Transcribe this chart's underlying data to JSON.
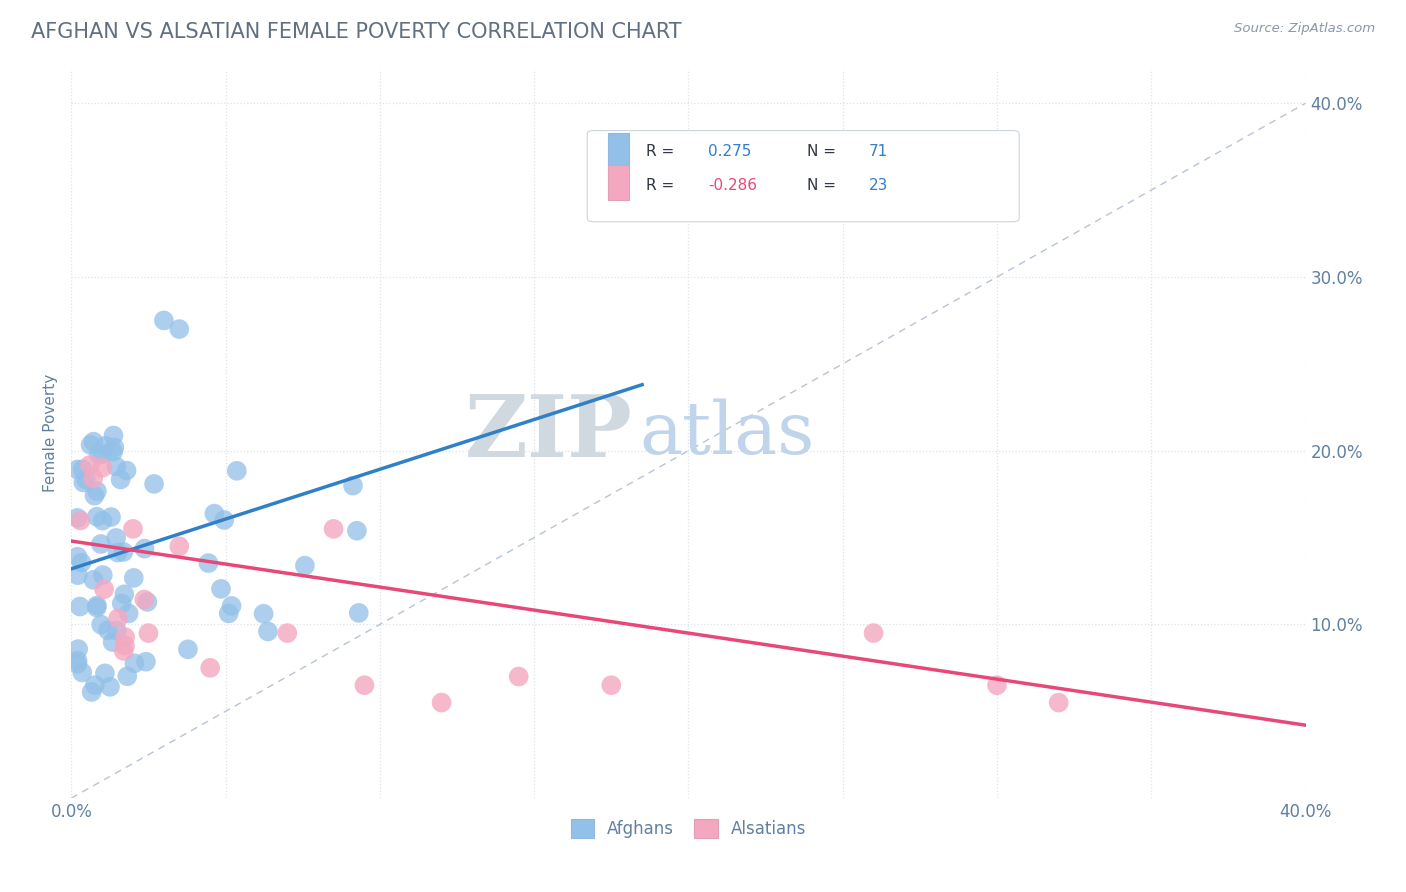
{
  "title": "AFGHAN VS ALSATIAN FEMALE POVERTY CORRELATION CHART",
  "source": "Source: ZipAtlas.com",
  "ylabel": "Female Poverty",
  "afghan_color": "#92c0e8",
  "alsatian_color": "#f4a8c0",
  "afghan_line_color": "#3080c8",
  "alsatian_line_color": "#e84878",
  "ref_line_color": "#b8c4d4",
  "legend_R1": "0.275",
  "legend_N1": "71",
  "legend_R2": "-0.286",
  "legend_N2": "23",
  "watermark_ZIP": "ZIP",
  "watermark_atlas": "atlas",
  "background_color": "#ffffff",
  "grid_color": "#dde2ec",
  "title_color": "#607080",
  "axis_color": "#6080a0",
  "source_color": "#8898a8",
  "afghan_line_x": [
    0.0,
    0.185
  ],
  "afghan_line_y": [
    0.132,
    0.238
  ],
  "alsatian_line_x": [
    0.0,
    0.4
  ],
  "alsatian_line_y": [
    0.148,
    0.042
  ],
  "ref_line_x": [
    0.0,
    0.4
  ],
  "ref_line_y": [
    0.0,
    0.4
  ],
  "xlim": [
    0.0,
    0.4
  ],
  "ylim": [
    0.0,
    0.42
  ],
  "x_ticks": [
    0.0,
    0.05,
    0.1,
    0.15,
    0.2,
    0.25,
    0.3,
    0.35,
    0.4
  ],
  "y_ticks": [
    0.1,
    0.2,
    0.3,
    0.4
  ]
}
